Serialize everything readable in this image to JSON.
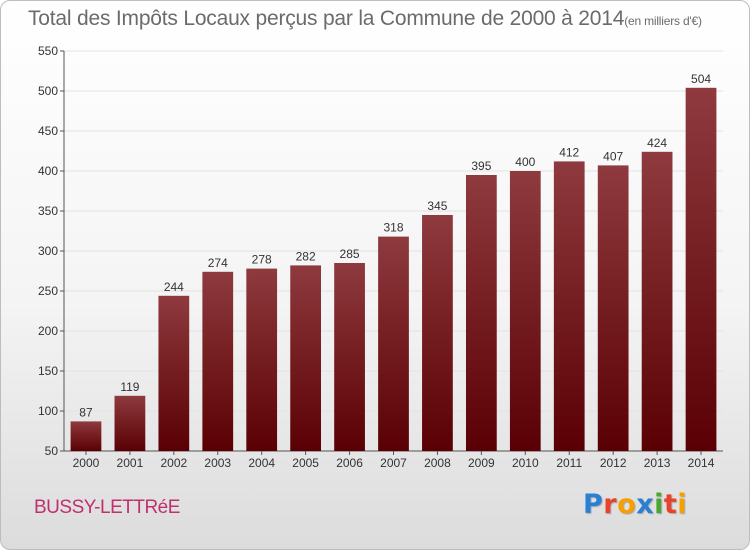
{
  "title": "Total des Impôts Locaux perçus par la Commune de 2000 à 2014",
  "unit": "(en milliers d'€)",
  "commune": "BUSSY-LETTRéE",
  "brand": {
    "text": "Proxiti",
    "letter_colors": [
      "#2a7fd4",
      "#e8412c",
      "#f5a000",
      "#2a7fd4",
      "#4aa832",
      "#e8412c",
      "#f5a000"
    ]
  },
  "colors": {
    "bar_top": "#8e3a3e",
    "bar_bottom": "#5a0004",
    "grid": "#e2e2e2"
  },
  "chart_data": {
    "type": "bar",
    "categories": [
      "2000",
      "2001",
      "2002",
      "2003",
      "2004",
      "2005",
      "2006",
      "2007",
      "2008",
      "2009",
      "2010",
      "2011",
      "2012",
      "2013",
      "2014"
    ],
    "values": [
      87,
      119,
      244,
      274,
      278,
      282,
      285,
      318,
      345,
      395,
      400,
      412,
      407,
      424,
      504
    ],
    "ylim": [
      50,
      550
    ],
    "yticks": [
      50,
      100,
      150,
      200,
      250,
      300,
      350,
      400,
      450,
      500,
      550
    ],
    "grid": true,
    "xlabel": "",
    "ylabel": ""
  }
}
